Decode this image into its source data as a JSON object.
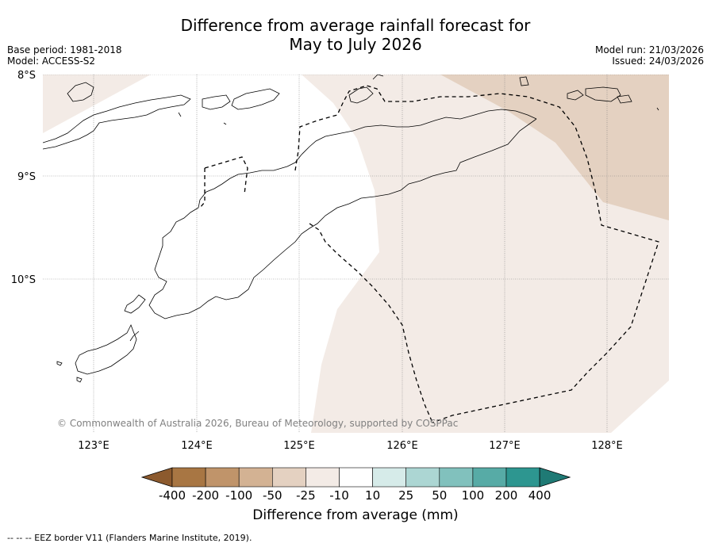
{
  "title": {
    "line1": "Difference from average rainfall forecast for",
    "line2": "May to July 2026"
  },
  "meta_left": {
    "base_period": "Base period: 1981-2018",
    "model": "Model: ACCESS-S2"
  },
  "meta_right": {
    "model_run": "Model run: 21/03/2026",
    "issued": "Issued: 24/03/2026"
  },
  "map": {
    "lat_labels": [
      "8°S",
      "9°S",
      "10°S"
    ],
    "lon_labels": [
      "123°E",
      "124°E",
      "125°E",
      "126°E",
      "127°E",
      "128°E"
    ],
    "copyright": "© Commonwealth of Australia 2026, Bureau of Meteorology, supported by COSPPac"
  },
  "colorbar": {
    "tick_labels": [
      "-400",
      "-200",
      "-100",
      "-50",
      "-25",
      "-10",
      "10",
      "25",
      "50",
      "100",
      "200",
      "400"
    ],
    "colors": [
      "#8c5a2e",
      "#a87643",
      "#c0946a",
      "#d3b293",
      "#e4d1c1",
      "#f3ebe6",
      "#ffffff",
      "#d6ebe9",
      "#acd6d3",
      "#81c1bd",
      "#57aba6",
      "#2d9690",
      "#1f7a75"
    ],
    "label": "Difference from average (mm)"
  },
  "footnote": "--  --  -- EEZ border V11 (Flanders Marine Institute, 2019)."
}
